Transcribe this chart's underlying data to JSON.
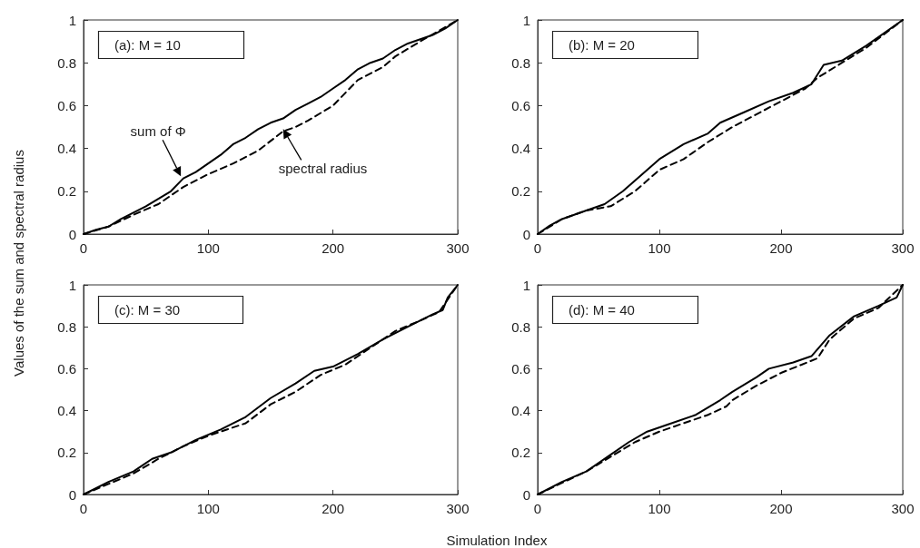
{
  "chart_data": [
    {
      "type": "line",
      "title": "(a): M = 10",
      "ylabel": "Values of the sum and spectral radius",
      "xlim": [
        0,
        300
      ],
      "xticks": [
        0,
        100,
        200,
        300
      ],
      "ylim": [
        0,
        1
      ],
      "yticks": [
        0,
        0.2,
        0.4,
        0.6,
        0.8,
        1
      ],
      "grid": false,
      "annotations": [
        {
          "text": "sum of Φ",
          "x": 78,
          "y": 0.27
        },
        {
          "text": "spectral radius",
          "x": 160,
          "y": 0.49
        }
      ],
      "series": [
        {
          "color": "#000000",
          "line_style": "solid",
          "x": [
            0,
            10,
            20,
            30,
            40,
            50,
            60,
            70,
            80,
            90,
            100,
            110,
            120,
            130,
            140,
            150,
            160,
            170,
            180,
            190,
            200,
            210,
            220,
            230,
            240,
            250,
            260,
            270,
            280,
            290,
            300
          ],
          "values": [
            0,
            0.02,
            0.035,
            0.07,
            0.1,
            0.13,
            0.165,
            0.2,
            0.26,
            0.29,
            0.33,
            0.37,
            0.42,
            0.45,
            0.49,
            0.52,
            0.54,
            0.58,
            0.61,
            0.64,
            0.68,
            0.72,
            0.77,
            0.8,
            0.82,
            0.86,
            0.89,
            0.91,
            0.93,
            0.96,
            1
          ]
        },
        {
          "color": "#000000",
          "line_style": "dashed",
          "x": [
            0,
            20,
            40,
            60,
            80,
            100,
            120,
            140,
            160,
            170,
            180,
            200,
            220,
            240,
            250,
            270,
            300
          ],
          "values": [
            0,
            0.035,
            0.09,
            0.14,
            0.22,
            0.28,
            0.33,
            0.39,
            0.48,
            0.5,
            0.53,
            0.6,
            0.72,
            0.78,
            0.83,
            0.9,
            1
          ]
        }
      ]
    },
    {
      "type": "line",
      "title": "(b): M = 20",
      "xlim": [
        0,
        300
      ],
      "xticks": [
        0,
        100,
        200,
        300
      ],
      "ylim": [
        0,
        1
      ],
      "yticks": [
        0,
        0.2,
        0.4,
        0.6,
        0.8,
        1
      ],
      "grid": false,
      "series": [
        {
          "color": "#000000",
          "line_style": "solid",
          "x": [
            0,
            10,
            20,
            40,
            55,
            60,
            70,
            80,
            90,
            100,
            120,
            140,
            150,
            170,
            190,
            210,
            225,
            235,
            250,
            270,
            300
          ],
          "values": [
            0,
            0.04,
            0.07,
            0.11,
            0.14,
            0.16,
            0.2,
            0.25,
            0.3,
            0.35,
            0.42,
            0.47,
            0.52,
            0.57,
            0.62,
            0.66,
            0.7,
            0.79,
            0.81,
            0.88,
            1
          ]
        },
        {
          "color": "#000000",
          "line_style": "dashed",
          "x": [
            0,
            20,
            40,
            60,
            80,
            100,
            120,
            140,
            160,
            180,
            200,
            220,
            230,
            250,
            270,
            300
          ],
          "values": [
            0,
            0.07,
            0.11,
            0.13,
            0.2,
            0.3,
            0.35,
            0.43,
            0.5,
            0.56,
            0.62,
            0.68,
            0.73,
            0.8,
            0.87,
            1
          ]
        }
      ]
    },
    {
      "type": "line",
      "title": "(c): M = 30",
      "xlabel": "Simulation Index",
      "xlim": [
        0,
        300
      ],
      "xticks": [
        0,
        100,
        200,
        300
      ],
      "ylim": [
        0,
        1
      ],
      "yticks": [
        0,
        0.2,
        0.4,
        0.6,
        0.8,
        1
      ],
      "grid": false,
      "series": [
        {
          "color": "#000000",
          "line_style": "solid",
          "x": [
            0,
            20,
            40,
            55,
            70,
            90,
            110,
            130,
            150,
            170,
            185,
            200,
            220,
            240,
            260,
            280,
            288,
            292,
            300
          ],
          "values": [
            0,
            0.06,
            0.11,
            0.17,
            0.2,
            0.26,
            0.31,
            0.37,
            0.46,
            0.53,
            0.59,
            0.61,
            0.67,
            0.74,
            0.8,
            0.86,
            0.88,
            0.94,
            1
          ]
        },
        {
          "color": "#000000",
          "line_style": "dashed",
          "x": [
            0,
            20,
            40,
            60,
            80,
            100,
            130,
            150,
            170,
            190,
            210,
            230,
            250,
            270,
            285,
            300
          ],
          "values": [
            0,
            0.05,
            0.1,
            0.17,
            0.23,
            0.28,
            0.34,
            0.43,
            0.49,
            0.57,
            0.62,
            0.7,
            0.78,
            0.83,
            0.87,
            1
          ]
        }
      ]
    },
    {
      "type": "line",
      "title": "(d): M = 40",
      "xlim": [
        0,
        300
      ],
      "xticks": [
        0,
        100,
        200,
        300
      ],
      "ylim": [
        0,
        1
      ],
      "yticks": [
        0,
        0.2,
        0.4,
        0.6,
        0.8,
        1
      ],
      "grid": false,
      "series": [
        {
          "color": "#000000",
          "line_style": "solid",
          "x": [
            0,
            20,
            40,
            60,
            75,
            90,
            110,
            130,
            150,
            160,
            180,
            190,
            210,
            225,
            240,
            260,
            280,
            295,
            300
          ],
          "values": [
            0,
            0.06,
            0.11,
            0.19,
            0.25,
            0.3,
            0.34,
            0.38,
            0.45,
            0.49,
            0.56,
            0.6,
            0.63,
            0.66,
            0.76,
            0.85,
            0.9,
            0.94,
            1
          ]
        },
        {
          "color": "#000000",
          "line_style": "dashed",
          "x": [
            0,
            40,
            60,
            80,
            100,
            120,
            140,
            155,
            160,
            180,
            200,
            230,
            240,
            260,
            280,
            300
          ],
          "values": [
            0,
            0.11,
            0.18,
            0.25,
            0.3,
            0.34,
            0.38,
            0.42,
            0.45,
            0.52,
            0.58,
            0.65,
            0.74,
            0.84,
            0.89,
            1
          ]
        }
      ]
    }
  ]
}
